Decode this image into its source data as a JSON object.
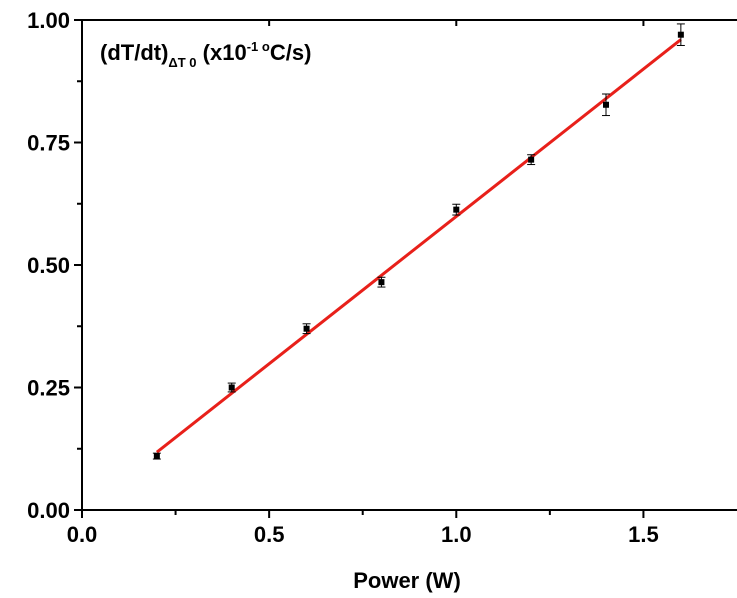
{
  "chart_data": {
    "type": "scatter",
    "title": "",
    "xlabel": "Power (W)",
    "ylabel": "",
    "xlim": [
      0.0,
      1.75
    ],
    "ylim": [
      0.0,
      1.0
    ],
    "x_ticks": [
      "0.0",
      "0.5",
      "1.0",
      "1.5"
    ],
    "y_ticks": [
      "0.00",
      "0.25",
      "0.50",
      "0.75",
      "1.00"
    ],
    "annotation": {
      "main": "(dT/dt)",
      "subscript": "ΔT  0",
      "units_prefix": "(x10",
      "exponent": "-1",
      "units_degree": "o",
      "units_suffix": "C/s)"
    },
    "series": [
      {
        "x": [
          0.2,
          0.4,
          0.6,
          0.8,
          1.0,
          1.2,
          1.4,
          1.6
        ],
        "y": [
          0.11,
          0.25,
          0.37,
          0.465,
          0.613,
          0.715,
          0.827,
          0.97
        ],
        "yerr": [
          0.006,
          0.009,
          0.01,
          0.01,
          0.011,
          0.01,
          0.022,
          0.022
        ],
        "color": "#000000"
      }
    ],
    "fit_line": {
      "x": [
        0.2,
        1.6
      ],
      "y": [
        0.118,
        0.96
      ],
      "color": "#e8201a"
    },
    "grid": false
  }
}
